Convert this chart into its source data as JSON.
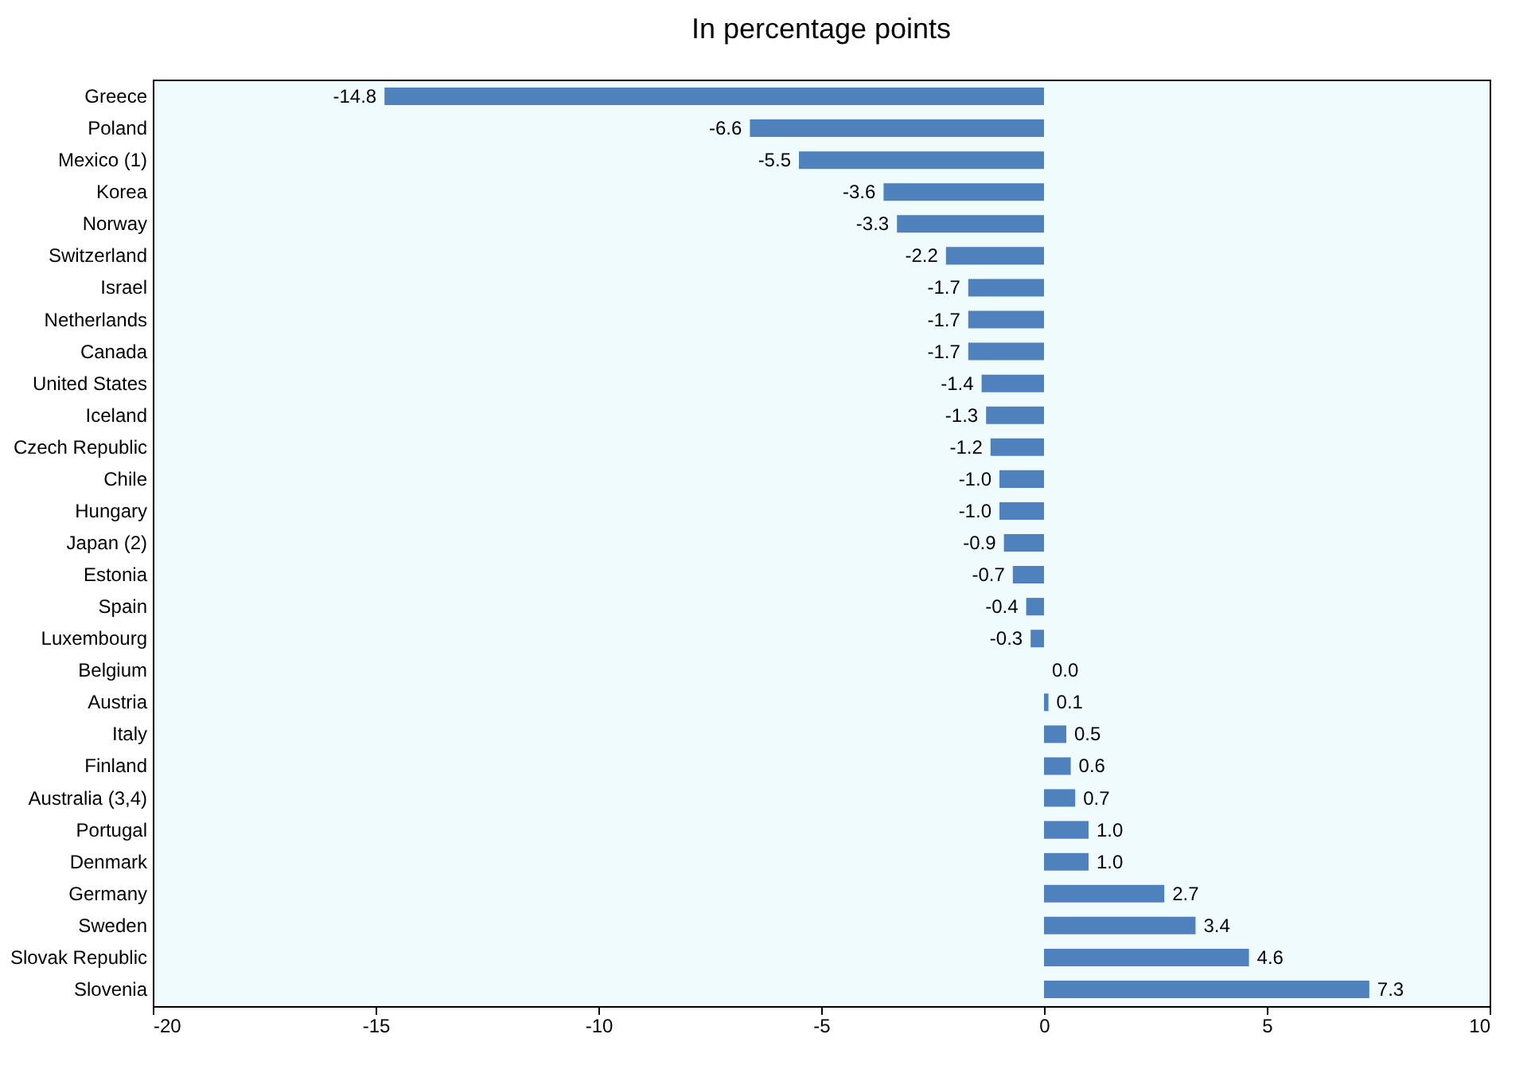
{
  "chart_data": {
    "type": "bar",
    "orientation": "horizontal",
    "title": "In percentage points",
    "categories": [
      "Greece",
      "Poland",
      "Mexico (1)",
      "Korea",
      "Norway",
      "Switzerland",
      "Israel",
      "Netherlands",
      "Canada",
      "United States",
      "Iceland",
      "Czech Republic",
      "Chile",
      "Hungary",
      "Japan (2)",
      "Estonia",
      "Spain",
      "Luxembourg",
      "Belgium",
      "Austria",
      "Italy",
      "Finland",
      "Australia (3,4)",
      "Portugal",
      "Denmark",
      "Germany",
      "Sweden",
      "Slovak Republic",
      "Slovenia"
    ],
    "values": [
      -14.8,
      -6.6,
      -5.5,
      -3.6,
      -3.3,
      -2.2,
      -1.7,
      -1.7,
      -1.7,
      -1.4,
      -1.3,
      -1.2,
      -1.0,
      -1.0,
      -0.9,
      -0.7,
      -0.4,
      -0.3,
      0.0,
      0.1,
      0.5,
      0.6,
      0.7,
      1.0,
      1.0,
      2.7,
      3.4,
      4.6,
      7.3
    ],
    "value_labels": [
      "-14.8",
      "-6.6",
      "-5.5",
      "-3.6",
      "-3.3",
      "-2.2",
      "-1.7",
      "-1.7",
      "-1.7",
      "-1.4",
      "-1.3",
      "-1.2",
      "-1.0",
      "-1.0",
      "-0.9",
      "-0.7",
      "-0.4",
      "-0.3",
      "0.0",
      "0.1",
      "0.5",
      "0.6",
      "0.7",
      "1.0",
      "1.0",
      "2.7",
      "3.4",
      "4.6",
      "7.3"
    ],
    "color": "#4f81bd",
    "xlim": [
      -20,
      10
    ],
    "xticks": [
      -20,
      -15,
      -10,
      -5,
      0,
      5,
      10
    ],
    "grid": false
  }
}
